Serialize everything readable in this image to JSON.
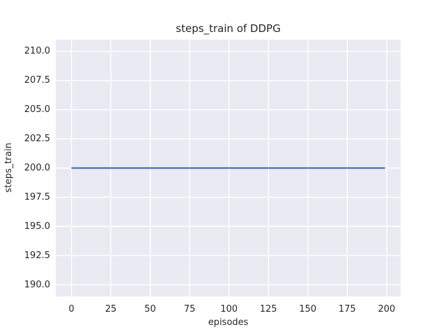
{
  "chart_data": {
    "type": "line",
    "title": "steps_train of DDPG",
    "xlabel": "episodes",
    "ylabel": "steps_train",
    "xlim": [
      -9.95,
      208.95
    ],
    "ylim": [
      189.0,
      211.0
    ],
    "xticks": [
      0,
      25,
      50,
      75,
      100,
      125,
      150,
      175,
      200
    ],
    "yticks": [
      190.0,
      192.5,
      195.0,
      197.5,
      200.0,
      202.5,
      205.0,
      207.5,
      210.0
    ],
    "ytick_decimals": 1,
    "grid": true,
    "legend": "none",
    "series": [
      {
        "name": "steps_train",
        "color": "#4c72b0",
        "x": [
          0,
          199
        ],
        "y": [
          200,
          200
        ]
      }
    ],
    "colors": {
      "figure_background": "#ffffff",
      "plot_background": "#eaeaf2",
      "gridline": "#ffffff",
      "text": "#262626",
      "line": "#4c72b0"
    }
  }
}
